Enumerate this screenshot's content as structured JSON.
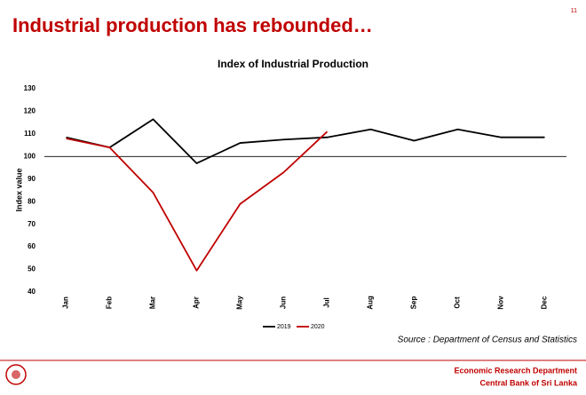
{
  "page_number": "11",
  "header": {
    "title": "Industrial production has rebounded…"
  },
  "chart_data": {
    "type": "line",
    "title": "Index of Industrial Production",
    "y_label": "Index value",
    "categories": [
      "Jan",
      "Feb",
      "Mar",
      "Apr",
      "May",
      "Jun",
      "Jul",
      "Aug",
      "Sep",
      "Oct",
      "Nov",
      "Dec"
    ],
    "series": [
      {
        "name": "2019",
        "color": "#000000",
        "values": [
          108.5,
          104,
          116.5,
          97,
          106,
          107.5,
          108.5,
          112,
          107,
          112,
          108.5,
          108.5
        ]
      },
      {
        "name": "2020",
        "color": "#c00000",
        "values": [
          108,
          104,
          84,
          49.5,
          79,
          93,
          111,
          null,
          null,
          null,
          null,
          null
        ]
      }
    ],
    "ylim": [
      40,
      130
    ],
    "yticks": [
      40,
      50,
      60,
      70,
      80,
      90,
      100,
      110,
      120,
      130
    ],
    "reference_line": 100,
    "grid": false,
    "legend": "bottom"
  },
  "source": "Source : Department of Census and Statistics",
  "footer": {
    "line1": "Economic Research Department",
    "line2": "Central Bank of Sri Lanka"
  }
}
